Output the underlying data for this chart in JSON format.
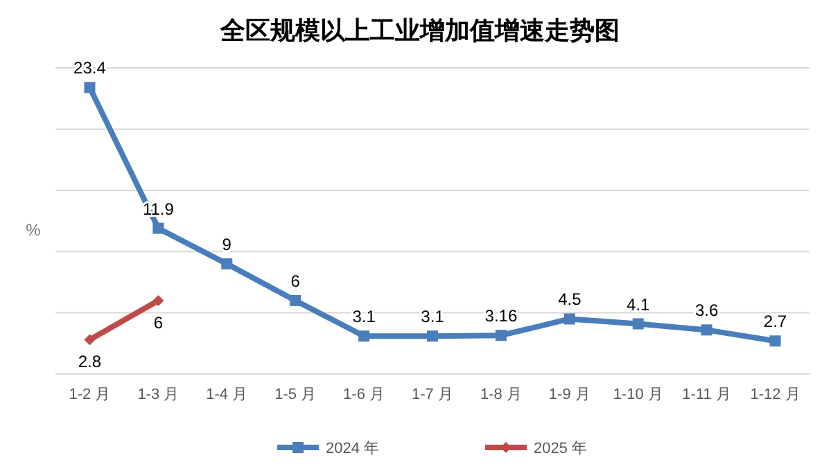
{
  "chart_data": {
    "type": "line",
    "title": "全区规模以上工业增加值增速走势图",
    "ylabel": "%",
    "categories": [
      "1-2 月",
      "1-3 月",
      "1-4 月",
      "1-5 月",
      "1-6 月",
      "1-7 月",
      "1-8 月",
      "1-9 月",
      "1-10 月",
      "1-11 月",
      "1-12 月"
    ],
    "series": [
      {
        "name": "2024 年",
        "color": "#4a7ebb",
        "marker": "square",
        "values": [
          23.4,
          11.9,
          9,
          6,
          3.1,
          3.1,
          3.16,
          4.5,
          4.1,
          3.6,
          2.7
        ],
        "value_labels": [
          "23.4",
          "11.9",
          "9",
          "6",
          "3.1",
          "3.1",
          "3.16",
          "4.5",
          "4.1",
          "3.6",
          "2.7"
        ]
      },
      {
        "name": "2025 年",
        "color": "#be4b48",
        "marker": "diamond",
        "values": [
          2.8,
          6,
          null,
          null,
          null,
          null,
          null,
          null,
          null,
          null,
          null
        ],
        "value_labels": [
          "2.8",
          "6",
          null,
          null,
          null,
          null,
          null,
          null,
          null,
          null,
          null
        ]
      }
    ],
    "ylim": [
      0,
      25
    ],
    "yticks": [
      {
        "value": 0,
        "label": null
      },
      {
        "value": 5,
        "label": null
      },
      {
        "value": 10,
        "label": null
      },
      {
        "value": 15,
        "label": null
      },
      {
        "value": 20,
        "label": null
      },
      {
        "value": 25,
        "label": null
      }
    ],
    "tick_labels": "x",
    "grid": "y",
    "legend": "bottom",
    "line_style": "solid"
  }
}
